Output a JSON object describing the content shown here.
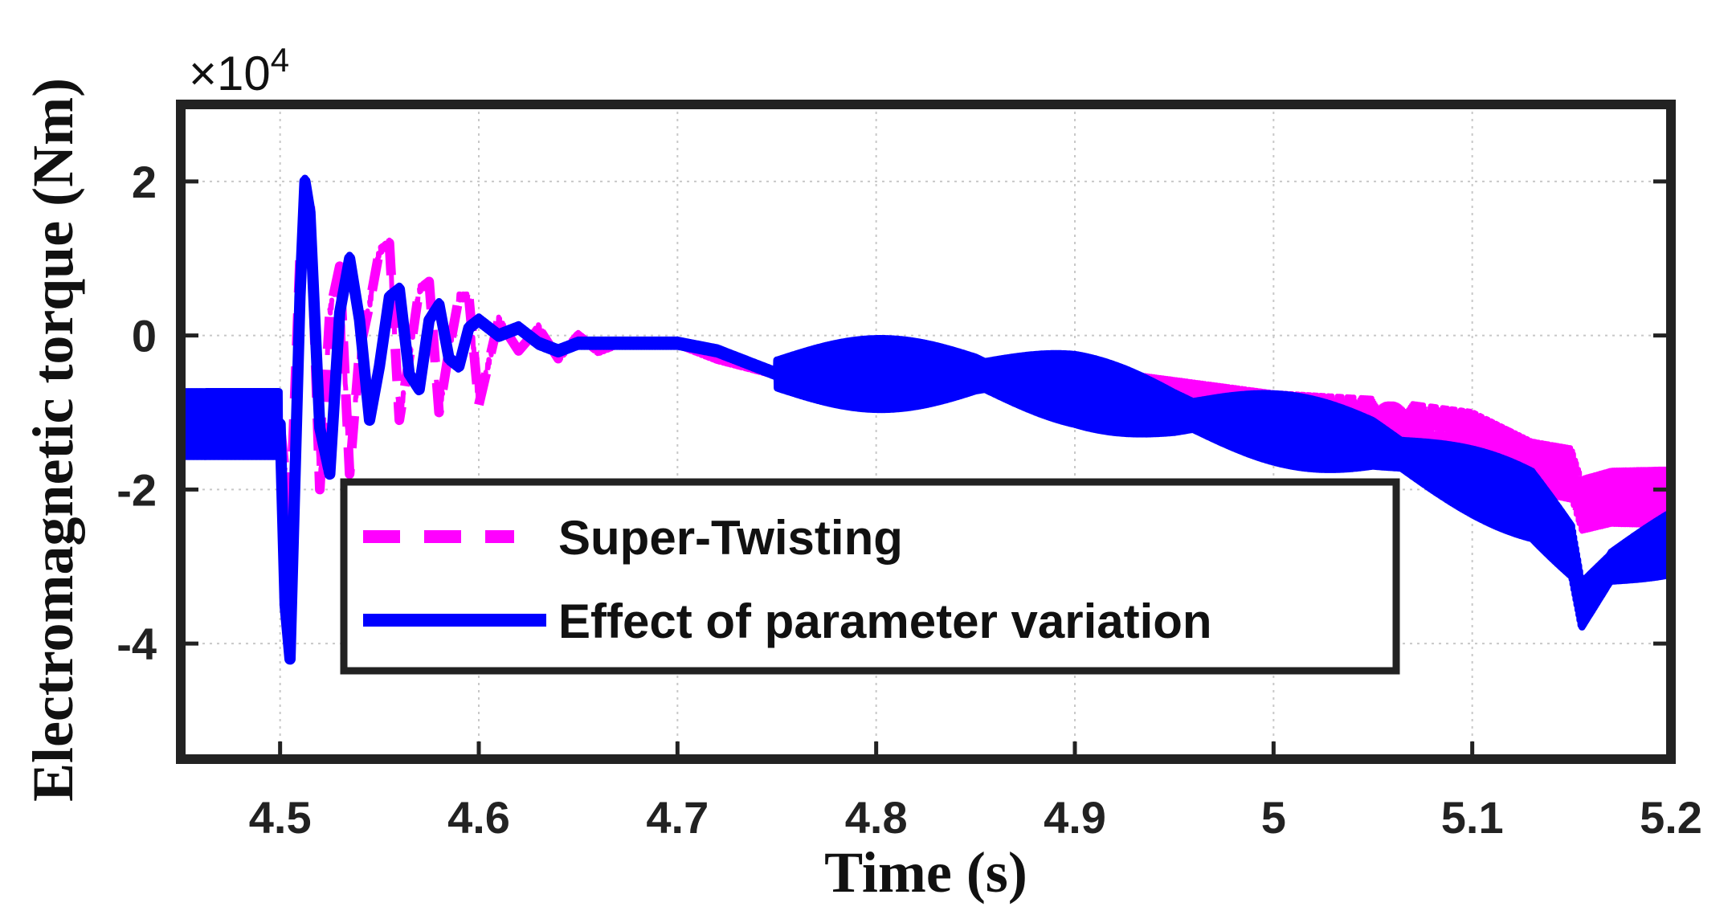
{
  "chart_data": {
    "type": "line",
    "title": "",
    "xlabel": "Time (s)",
    "ylabel": "Electromagnetic torque (Nm)",
    "y_scale_label": "×10",
    "y_scale_exponent": "4",
    "xlim": [
      4.45,
      5.2
    ],
    "ylim": [
      -5.5,
      3.0
    ],
    "x_ticks": [
      4.5,
      4.6,
      4.7,
      4.8,
      4.9,
      5.0,
      5.1,
      5.2
    ],
    "x_tick_labels": [
      "4.5",
      "4.6",
      "4.7",
      "4.8",
      "4.9",
      "5",
      "5.1",
      "5.2"
    ],
    "y_ticks": [
      -4,
      -2,
      0,
      2
    ],
    "y_tick_labels": [
      "-4",
      "-2",
      "0",
      "2"
    ],
    "grid": true,
    "legend_position": "lower-center",
    "series": [
      {
        "name": "Super-Twisting",
        "color": "#ff00ff",
        "style": "dashed",
        "x": [
          4.45,
          4.5,
          4.505,
          4.51,
          4.515,
          4.52,
          4.525,
          4.53,
          4.535,
          4.54,
          4.545,
          4.55,
          4.555,
          4.56,
          4.565,
          4.57,
          4.575,
          4.58,
          4.585,
          4.59,
          4.595,
          4.6,
          4.61,
          4.62,
          4.63,
          4.64,
          4.65,
          4.66,
          4.67,
          4.68,
          4.7,
          4.72,
          4.75,
          4.8,
          4.85,
          4.9,
          4.95,
          5.0,
          5.05,
          5.1,
          5.13,
          5.15,
          5.155,
          5.17,
          5.2
        ],
        "values": [
          -1.15,
          -1.15,
          -2.4,
          1.0,
          1.8,
          -2.0,
          0.3,
          0.9,
          -1.8,
          -0.2,
          0.4,
          1.1,
          1.2,
          -1.1,
          -0.3,
          0.6,
          0.7,
          -1.0,
          -0.2,
          0.5,
          0.5,
          -0.9,
          0.2,
          -0.2,
          0.1,
          -0.3,
          0.0,
          -0.2,
          -0.1,
          -0.1,
          -0.1,
          -0.3,
          -0.5,
          -0.5,
          -0.5,
          -0.6,
          -0.8,
          -1.0,
          -1.1,
          -1.3,
          -1.7,
          -1.8,
          -2.2,
          -2.1,
          -2.1
        ]
      },
      {
        "name": "Effect of parameter variation",
        "color": "#0000ff",
        "style": "solid",
        "x": [
          4.45,
          4.5,
          4.5025,
          4.505,
          4.51,
          4.5125,
          4.515,
          4.52,
          4.525,
          4.53,
          4.535,
          4.54,
          4.545,
          4.55,
          4.555,
          4.56,
          4.565,
          4.57,
          4.575,
          4.58,
          4.585,
          4.59,
          4.595,
          4.6,
          4.61,
          4.62,
          4.63,
          4.64,
          4.65,
          4.66,
          4.68,
          4.7,
          4.72,
          4.75,
          4.8,
          4.85,
          4.9,
          4.95,
          5.0,
          5.05,
          5.1,
          5.13,
          5.15,
          5.155,
          5.17,
          5.2
        ],
        "values": [
          -1.15,
          -1.15,
          -3.5,
          -4.2,
          0.5,
          2.0,
          1.6,
          -1.2,
          -1.8,
          0.3,
          1.0,
          0.2,
          -1.1,
          -0.4,
          0.5,
          0.6,
          -0.5,
          -0.7,
          0.2,
          0.4,
          -0.3,
          -0.4,
          0.1,
          0.2,
          0.0,
          0.1,
          -0.1,
          -0.2,
          -0.1,
          -0.1,
          -0.1,
          -0.1,
          -0.2,
          -0.5,
          -0.5,
          -0.5,
          -0.7,
          -1.0,
          -1.2,
          -1.4,
          -1.9,
          -2.2,
          -2.8,
          -3.5,
          -3.0,
          -2.7
        ]
      }
    ]
  }
}
